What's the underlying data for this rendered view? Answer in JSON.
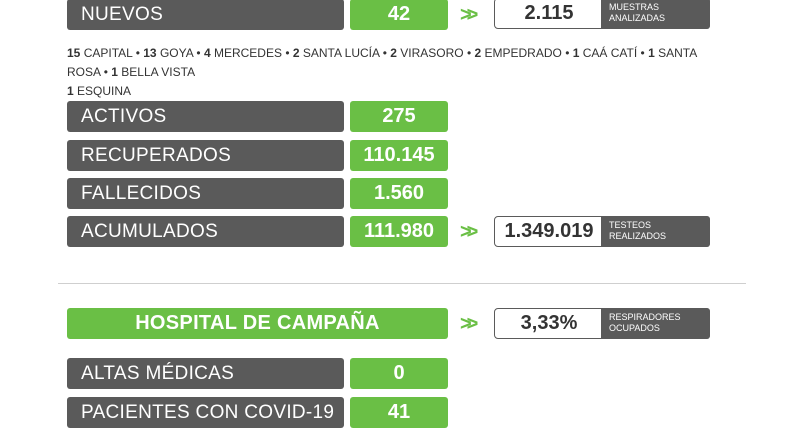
{
  "nuevos": {
    "label": "NUEVOS",
    "value": "42"
  },
  "muestras": {
    "value": "2.115",
    "caption_line1": "MUESTRAS",
    "caption_line2": "ANALIZADAS"
  },
  "towns": [
    {
      "n": "15",
      "name": "CAPITAL"
    },
    {
      "n": "13",
      "name": "GOYA"
    },
    {
      "n": "4",
      "name": "MERCEDES"
    },
    {
      "n": "2",
      "name": "SANTA LUCÍA"
    },
    {
      "n": "2",
      "name": "VIRASORO"
    },
    {
      "n": "2",
      "name": "EMPEDRADO"
    },
    {
      "n": "1",
      "name": "CAÁ CATÍ"
    },
    {
      "n": "1",
      "name": "SANTA ROSA"
    },
    {
      "n": "1",
      "name": "BELLA VISTA"
    },
    {
      "n": "1",
      "name": "ESQUINA"
    }
  ],
  "stats": [
    {
      "label": "ACTIVOS",
      "value": "275"
    },
    {
      "label": "RECUPERADOS",
      "value": "110.145"
    },
    {
      "label": "FALLECIDOS",
      "value": "1.560"
    },
    {
      "label": "ACUMULADOS",
      "value": "111.980"
    }
  ],
  "testeos": {
    "value": "1.349.019",
    "caption_line1": "TESTEOS",
    "caption_line2": "REALIZADOS"
  },
  "hospital": {
    "title": "HOSPITAL DE CAMPAÑA"
  },
  "respiradores": {
    "value": "3,33%",
    "caption_line1": "RESPIRADORES",
    "caption_line2": "OCUPADOS"
  },
  "hospital_stats": [
    {
      "label": "ALTAS MÉDICAS",
      "value": "0"
    },
    {
      "label": "PACIENTES CON COVID-19",
      "value": "41"
    }
  ],
  "colors": {
    "green": "#6abf45",
    "gray": "#5a5a5a"
  }
}
